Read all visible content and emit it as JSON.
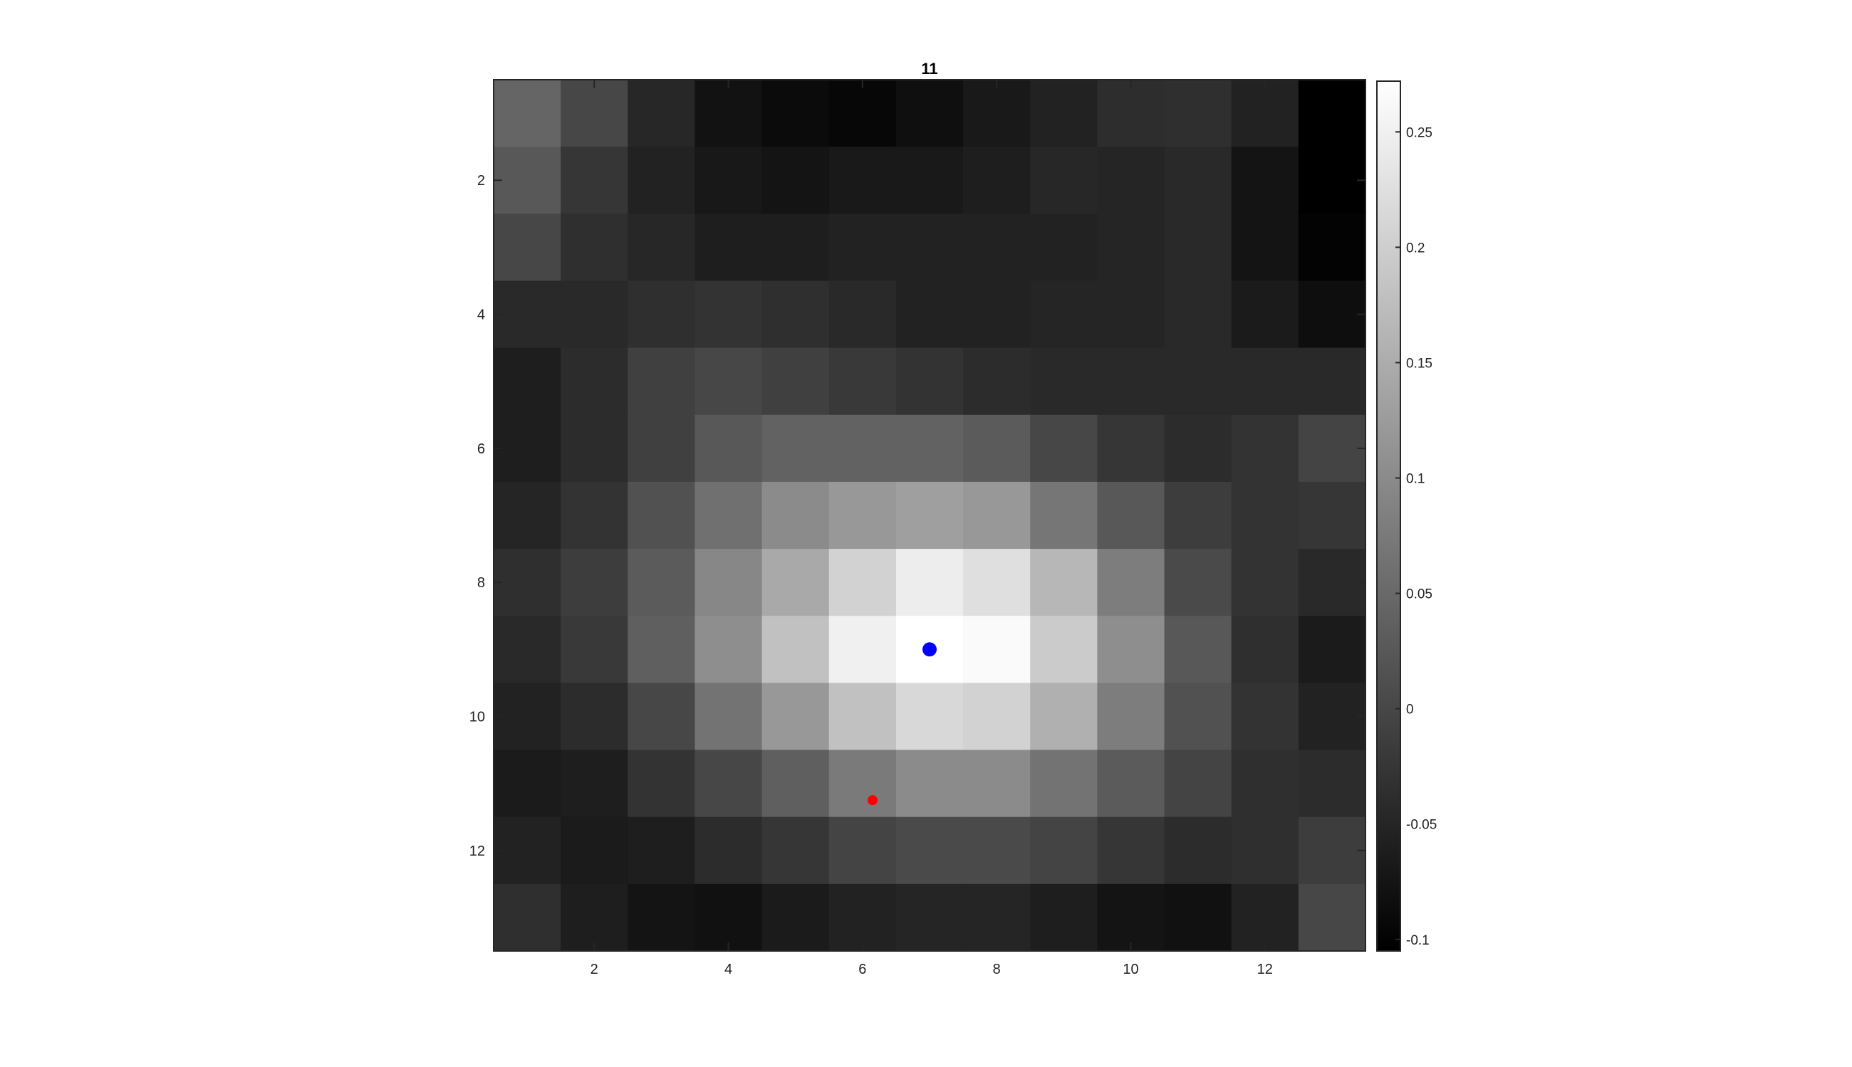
{
  "chart_data": {
    "type": "heatmap",
    "title": "11",
    "colormap": "gray",
    "rows": 13,
    "cols": 13,
    "x_ticks": [
      2,
      4,
      6,
      8,
      10,
      12
    ],
    "y_ticks": [
      2,
      4,
      6,
      8,
      10,
      12
    ],
    "clim": [
      -0.105,
      0.272
    ],
    "colorbar_ticks": [
      0.25,
      0.2,
      0.15,
      0.1,
      0.05,
      0,
      -0.05,
      -0.1
    ],
    "colorbar_labels": [
      "0.25",
      "0.2",
      "0.15",
      "0.1",
      "0.05",
      "0",
      "-0.05",
      "-0.1"
    ],
    "values": [
      [
        0.045,
        0.0,
        -0.048,
        -0.078,
        -0.088,
        -0.095,
        -0.083,
        -0.068,
        -0.055,
        -0.038,
        -0.035,
        -0.055,
        -0.105
      ],
      [
        0.025,
        -0.025,
        -0.055,
        -0.07,
        -0.075,
        -0.068,
        -0.068,
        -0.06,
        -0.048,
        -0.05,
        -0.045,
        -0.075,
        -0.105
      ],
      [
        0.0,
        -0.035,
        -0.048,
        -0.06,
        -0.06,
        -0.055,
        -0.055,
        -0.055,
        -0.055,
        -0.05,
        -0.045,
        -0.075,
        -0.1
      ],
      [
        -0.045,
        -0.045,
        -0.035,
        -0.03,
        -0.035,
        -0.045,
        -0.055,
        -0.055,
        -0.05,
        -0.05,
        -0.045,
        -0.065,
        -0.085
      ],
      [
        -0.06,
        -0.04,
        -0.01,
        0.0,
        -0.01,
        -0.02,
        -0.03,
        -0.04,
        -0.045,
        -0.045,
        -0.045,
        -0.045,
        -0.045
      ],
      [
        -0.06,
        -0.04,
        -0.01,
        0.025,
        0.04,
        0.04,
        0.04,
        0.03,
        0.0,
        -0.025,
        -0.04,
        -0.03,
        -0.005
      ],
      [
        -0.05,
        -0.03,
        0.015,
        0.06,
        0.1,
        0.12,
        0.13,
        0.12,
        0.07,
        0.025,
        -0.015,
        -0.03,
        -0.025
      ],
      [
        -0.035,
        -0.015,
        0.03,
        0.095,
        0.145,
        0.205,
        0.245,
        0.225,
        0.165,
        0.08,
        0.005,
        -0.03,
        -0.045
      ],
      [
        -0.045,
        -0.02,
        0.035,
        0.105,
        0.18,
        0.25,
        0.272,
        0.265,
        0.195,
        0.105,
        0.025,
        -0.035,
        -0.065
      ],
      [
        -0.055,
        -0.04,
        0.0,
        0.065,
        0.12,
        0.18,
        0.215,
        0.205,
        0.155,
        0.08,
        0.015,
        -0.03,
        -0.055
      ],
      [
        -0.065,
        -0.06,
        -0.03,
        0.0,
        0.035,
        0.075,
        0.1,
        0.1,
        0.065,
        0.03,
        -0.005,
        -0.035,
        -0.04
      ],
      [
        -0.055,
        -0.065,
        -0.06,
        -0.04,
        -0.025,
        -0.005,
        0.005,
        0.005,
        -0.005,
        -0.025,
        -0.04,
        -0.035,
        -0.015
      ],
      [
        -0.035,
        -0.06,
        -0.075,
        -0.08,
        -0.065,
        -0.055,
        -0.05,
        -0.05,
        -0.06,
        -0.075,
        -0.08,
        -0.055,
        0.0
      ]
    ],
    "markers": [
      {
        "name": "blue-marker",
        "x": 7,
        "y": 9,
        "color": "#0000ff",
        "size": "large"
      },
      {
        "name": "red-marker",
        "x": 6.15,
        "y": 11.25,
        "color": "#ff0000",
        "size": "small"
      }
    ]
  }
}
